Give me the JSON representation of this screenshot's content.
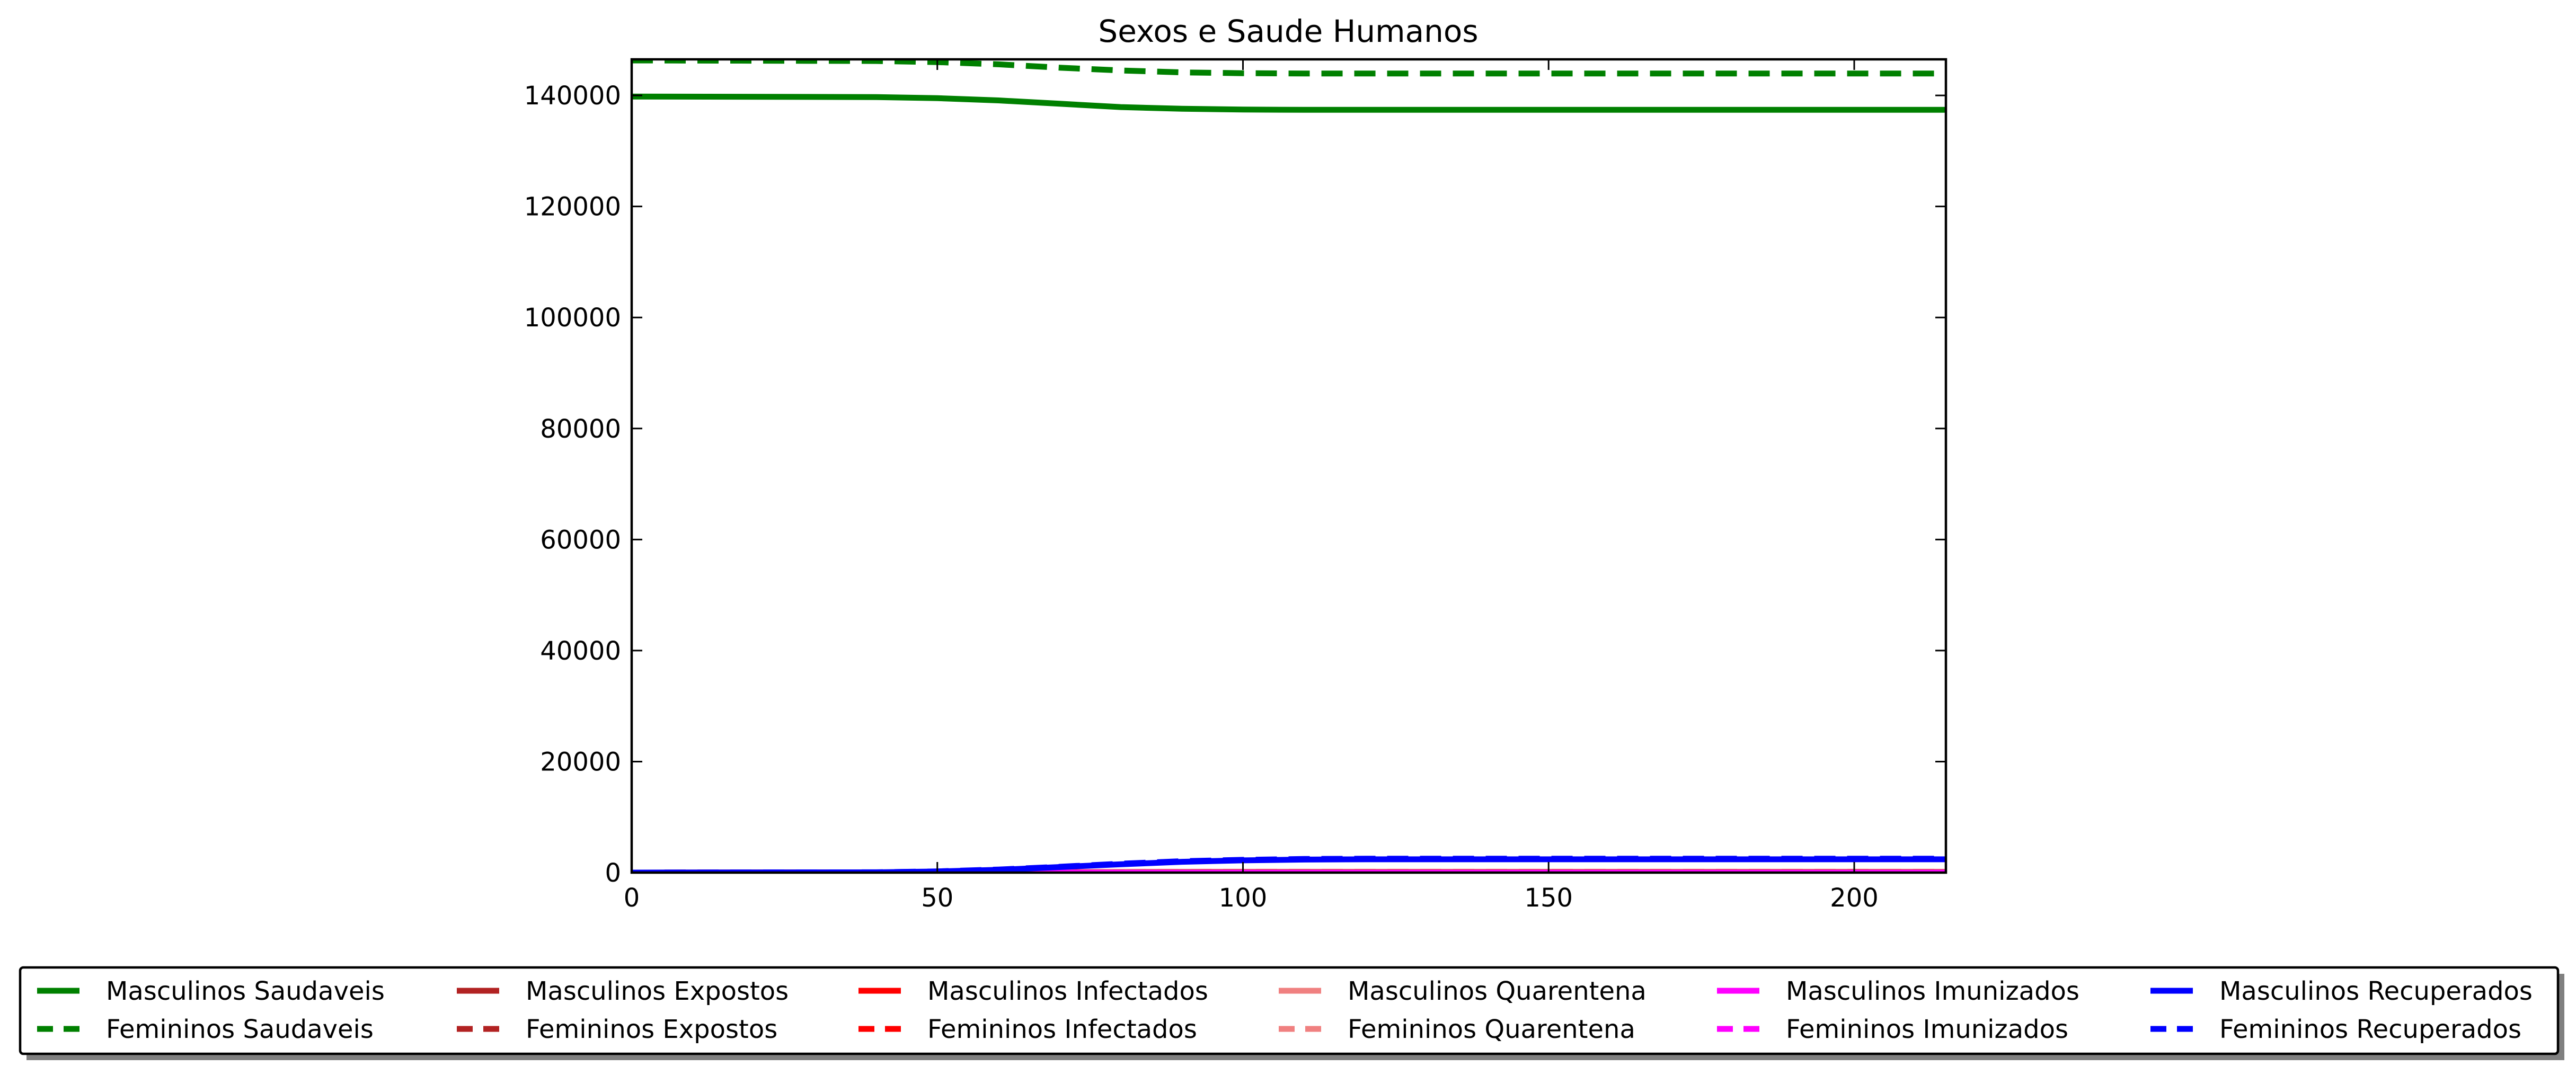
{
  "chart_data": {
    "type": "line",
    "title": "Sexos e Saude Humanos",
    "xlabel": "",
    "ylabel": "",
    "xlim": [
      0,
      215
    ],
    "ylim": [
      0,
      146500
    ],
    "xticks": [
      0,
      50,
      100,
      150,
      200
    ],
    "yticks": [
      0,
      20000,
      40000,
      60000,
      80000,
      100000,
      120000,
      140000
    ],
    "grid": false,
    "legend_position": "bottom, below plot, 6 columns",
    "series": [
      {
        "name": "Masculinos Saudaveis",
        "color": "#008000",
        "style": "solid",
        "x": [
          0,
          40,
          50,
          60,
          70,
          80,
          90,
          100,
          110,
          120,
          150,
          215
        ],
        "y": [
          139800,
          139700,
          139500,
          139100,
          138500,
          137900,
          137600,
          137450,
          137400,
          137400,
          137400,
          137400
        ]
      },
      {
        "name": "Femininos Saudaveis",
        "color": "#008000",
        "style": "dashed",
        "x": [
          0,
          40,
          50,
          60,
          70,
          80,
          90,
          100,
          110,
          120,
          150,
          215
        ],
        "y": [
          146300,
          146200,
          146000,
          145600,
          145000,
          144500,
          144150,
          144000,
          143950,
          143950,
          143950,
          143950
        ]
      },
      {
        "name": "Masculinos Expostos",
        "color": "#b22222",
        "style": "solid",
        "x": [
          0,
          50,
          100,
          150,
          215
        ],
        "y": [
          0,
          60,
          120,
          120,
          120
        ]
      },
      {
        "name": "Femininos Expostos",
        "color": "#b22222",
        "style": "dashed",
        "x": [
          0,
          50,
          100,
          150,
          215
        ],
        "y": [
          0,
          60,
          120,
          120,
          120
        ]
      },
      {
        "name": "Masculinos Infectados",
        "color": "#ff0000",
        "style": "solid",
        "x": [
          0,
          50,
          100,
          150,
          215
        ],
        "y": [
          0,
          40,
          80,
          80,
          80
        ]
      },
      {
        "name": "Femininos Infectados",
        "color": "#ff0000",
        "style": "dashed",
        "x": [
          0,
          50,
          100,
          150,
          215
        ],
        "y": [
          0,
          40,
          80,
          80,
          80
        ]
      },
      {
        "name": "Masculinos Quarentena",
        "color": "#f08080",
        "style": "solid",
        "x": [
          0,
          50,
          100,
          150,
          215
        ],
        "y": [
          0,
          20,
          40,
          40,
          40
        ]
      },
      {
        "name": "Femininos Quarentena",
        "color": "#f08080",
        "style": "dashed",
        "x": [
          0,
          50,
          100,
          150,
          215
        ],
        "y": [
          0,
          20,
          40,
          40,
          40
        ]
      },
      {
        "name": "Masculinos Imunizados",
        "color": "#ff00ff",
        "style": "solid",
        "x": [
          0,
          50,
          100,
          150,
          215
        ],
        "y": [
          0,
          0,
          0,
          0,
          0
        ]
      },
      {
        "name": "Femininos Imunizados",
        "color": "#ff00ff",
        "style": "dashed",
        "x": [
          0,
          50,
          100,
          150,
          215
        ],
        "y": [
          0,
          0,
          0,
          0,
          0
        ]
      },
      {
        "name": "Masculinos Recuperados",
        "color": "#0000ff",
        "style": "solid",
        "x": [
          0,
          40,
          50,
          60,
          70,
          80,
          90,
          100,
          110,
          120,
          150,
          215
        ],
        "y": [
          0,
          50,
          200,
          500,
          1000,
          1500,
          1950,
          2200,
          2350,
          2400,
          2400,
          2400
        ]
      },
      {
        "name": "Femininos Recuperados",
        "color": "#0000ff",
        "style": "dashed",
        "x": [
          0,
          40,
          50,
          60,
          70,
          80,
          90,
          100,
          110,
          120,
          150,
          215
        ],
        "y": [
          0,
          60,
          220,
          550,
          1050,
          1600,
          2050,
          2300,
          2450,
          2500,
          2500,
          2500
        ]
      }
    ]
  }
}
